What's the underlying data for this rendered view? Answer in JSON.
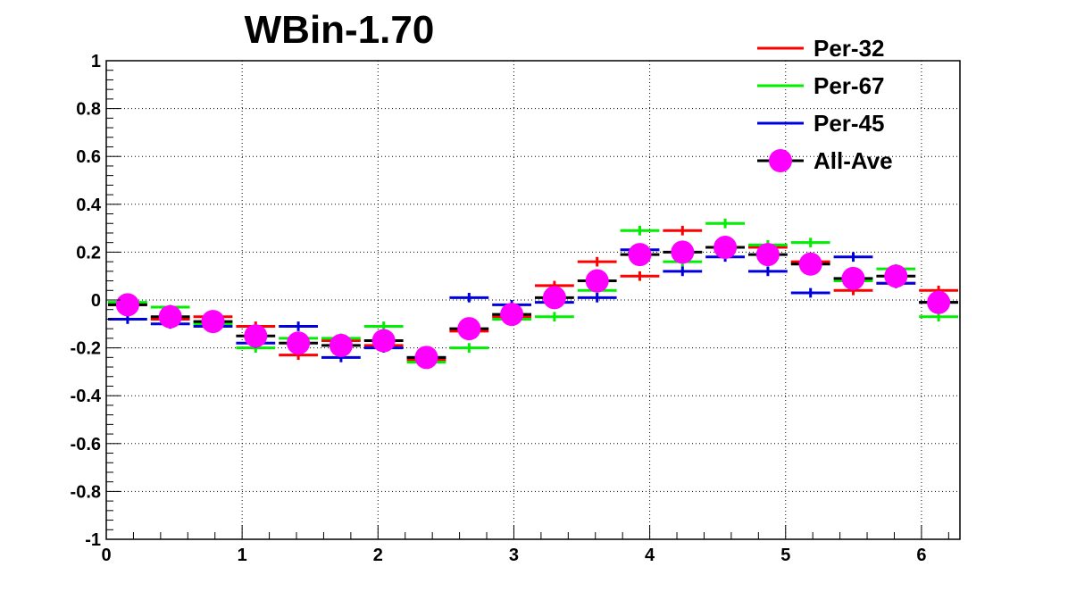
{
  "chart_data": {
    "type": "scatter",
    "title": "WBin-1.70",
    "xlabel": "",
    "ylabel": "",
    "xlim": [
      0,
      6.2832
    ],
    "ylim": [
      -1,
      1
    ],
    "grid": true,
    "legend_position": "top-right",
    "x_ticks": [
      0,
      1,
      2,
      3,
      4,
      5,
      6
    ],
    "x_tick_labels": [
      "0",
      "1",
      "2",
      "3",
      "4",
      "5",
      "6"
    ],
    "y_ticks": [
      -1,
      -0.8,
      -0.6,
      -0.4,
      -0.2,
      0,
      0.2,
      0.4,
      0.6,
      0.8,
      1
    ],
    "y_tick_labels": [
      "-1",
      "-0.8",
      "-0.6",
      "-0.4",
      "-0.2",
      "0",
      "0.2",
      "0.4",
      "0.6",
      "0.8",
      "1"
    ],
    "x": [
      0.1571,
      0.4712,
      0.7854,
      1.0996,
      1.4137,
      1.7279,
      2.042,
      2.3562,
      2.6704,
      2.9845,
      3.2987,
      3.6128,
      3.927,
      4.2412,
      4.5553,
      4.8695,
      5.1836,
      5.4978,
      5.812,
      6.1261
    ],
    "x_halfwidth": 0.1571,
    "series": [
      {
        "name": "Per-32",
        "color": "#ff0000",
        "marker": "cross",
        "values": [
          -0.02,
          -0.08,
          -0.07,
          -0.11,
          -0.23,
          -0.17,
          -0.19,
          -0.25,
          -0.13,
          -0.07,
          0.06,
          0.16,
          0.1,
          0.29,
          0.22,
          0.22,
          0.16,
          0.04,
          0.07,
          0.04
        ],
        "yerr": [
          0.01,
          0.01,
          0.01,
          0.02,
          0.02,
          0.02,
          0.02,
          0.02,
          0.02,
          0.02,
          0.02,
          0.02,
          0.02,
          0.02,
          0.02,
          0.02,
          0.02,
          0.02,
          0.02,
          0.02
        ]
      },
      {
        "name": "Per-67",
        "color": "#00ee00",
        "marker": "cross",
        "values": [
          -0.01,
          -0.03,
          -0.1,
          -0.2,
          -0.16,
          -0.16,
          -0.11,
          -0.26,
          -0.2,
          -0.08,
          -0.07,
          0.04,
          0.29,
          0.16,
          0.32,
          0.23,
          0.24,
          0.08,
          0.13,
          -0.07
        ],
        "yerr": [
          0.01,
          0.01,
          0.02,
          0.02,
          0.02,
          0.02,
          0.02,
          0.02,
          0.02,
          0.02,
          0.02,
          0.02,
          0.02,
          0.02,
          0.02,
          0.02,
          0.02,
          0.02,
          0.02,
          0.02
        ]
      },
      {
        "name": "Per-45",
        "color": "#0000dd",
        "marker": "cross",
        "values": [
          -0.08,
          -0.1,
          -0.11,
          -0.18,
          -0.11,
          -0.24,
          -0.2,
          -0.24,
          0.01,
          -0.02,
          -0.01,
          0.01,
          0.21,
          0.12,
          0.18,
          0.12,
          0.03,
          0.18,
          0.07,
          -0.01
        ],
        "yerr": [
          0.02,
          0.02,
          0.02,
          0.02,
          0.02,
          0.02,
          0.02,
          0.02,
          0.02,
          0.02,
          0.02,
          0.02,
          0.02,
          0.02,
          0.02,
          0.02,
          0.02,
          0.02,
          0.02,
          0.02
        ]
      },
      {
        "name": "All-Ave",
        "color": "#ff00ff",
        "bar_color": "#000000",
        "marker": "circle",
        "values": [
          -0.02,
          -0.07,
          -0.09,
          -0.15,
          -0.18,
          -0.19,
          -0.17,
          -0.24,
          -0.12,
          -0.06,
          0.01,
          0.08,
          0.19,
          0.2,
          0.22,
          0.19,
          0.15,
          0.09,
          0.1,
          -0.01
        ],
        "yerr": [
          0.01,
          0.01,
          0.01,
          0.01,
          0.01,
          0.01,
          0.01,
          0.01,
          0.01,
          0.01,
          0.01,
          0.01,
          0.01,
          0.01,
          0.01,
          0.01,
          0.01,
          0.01,
          0.01,
          0.01
        ]
      }
    ]
  }
}
